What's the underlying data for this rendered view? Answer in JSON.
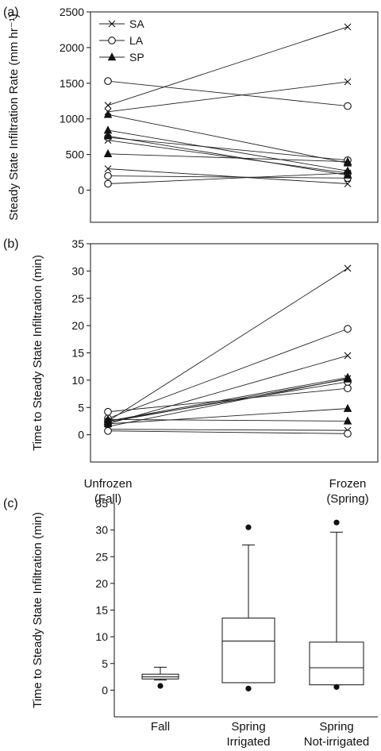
{
  "chart_data": [
    {
      "panel": "(a)",
      "type": "line",
      "xlabel": "",
      "ylabel": "Steady State Infiltration Rate (mm hr⁻¹)",
      "ylim": [
        -450,
        2500
      ],
      "yticks": [
        0,
        500,
        1000,
        1500,
        2000,
        2500
      ],
      "categories": [
        "Unfrozen (Fall)",
        "Frozen (Spring)"
      ],
      "legend": [
        {
          "name": "SA",
          "marker": "x"
        },
        {
          "name": "LA",
          "marker": "circle"
        },
        {
          "name": "SP",
          "marker": "triangle"
        }
      ],
      "legend_position": "top-left",
      "series": [
        {
          "name": "SA",
          "values": [
            1190,
            2290
          ]
        },
        {
          "name": "SA",
          "values": [
            1100,
            1520
          ]
        },
        {
          "name": "SA",
          "values": [
            700,
            240
          ]
        },
        {
          "name": "SA",
          "values": [
            300,
            90
          ]
        },
        {
          "name": "LA",
          "values": [
            1530,
            1180
          ]
        },
        {
          "name": "LA",
          "values": [
            740,
            420
          ]
        },
        {
          "name": "LA",
          "values": [
            200,
            170
          ]
        },
        {
          "name": "LA",
          "values": [
            90,
            240
          ]
        },
        {
          "name": "SP",
          "values": [
            1060,
            380
          ]
        },
        {
          "name": "SP",
          "values": [
            840,
            270
          ]
        },
        {
          "name": "SP",
          "values": [
            760,
            210
          ]
        },
        {
          "name": "SP",
          "values": [
            510,
            400
          ]
        }
      ]
    },
    {
      "panel": "(b)",
      "type": "line",
      "xlabel": "",
      "ylabel": "Time to Steady State Infiltration (min)",
      "ylim": [
        -5,
        35
      ],
      "yticks": [
        0,
        5,
        10,
        15,
        20,
        25,
        30,
        35
      ],
      "categories": [
        "Unfrozen (Fall)",
        "Frozen (Spring)"
      ],
      "category_labels": [
        [
          "Unfrozen",
          "(Fall)"
        ],
        [
          "Frozen",
          "(Spring)"
        ]
      ],
      "series": [
        {
          "name": "SA",
          "values": [
            2.5,
            30.5
          ]
        },
        {
          "name": "SA",
          "values": [
            2.0,
            14.5
          ]
        },
        {
          "name": "SA",
          "values": [
            1.5,
            10.3
          ]
        },
        {
          "name": "SA",
          "values": [
            1.0,
            0.8
          ]
        },
        {
          "name": "LA",
          "values": [
            3.0,
            19.4
          ]
        },
        {
          "name": "LA",
          "values": [
            4.2,
            8.5
          ]
        },
        {
          "name": "LA",
          "values": [
            2.5,
            9.7
          ]
        },
        {
          "name": "LA",
          "values": [
            0.7,
            0.2
          ]
        },
        {
          "name": "SP",
          "values": [
            2.3,
            10.2
          ]
        },
        {
          "name": "SP",
          "values": [
            2.0,
            4.8
          ]
        },
        {
          "name": "SP",
          "values": [
            2.8,
            2.5
          ]
        },
        {
          "name": "SP",
          "values": [
            2.5,
            10.5
          ]
        }
      ]
    },
    {
      "panel": "(c)",
      "type": "box",
      "xlabel": "",
      "ylabel": "Time to Steady State Infiltration (min)",
      "ylim": [
        -5,
        35
      ],
      "yticks": [
        0,
        5,
        10,
        15,
        20,
        25,
        30,
        35
      ],
      "categories": [
        "Fall",
        "Spring Irrigated",
        "Spring Not-irrigated"
      ],
      "category_labels": [
        [
          "Fall"
        ],
        [
          "Spring",
          "Irrigated"
        ],
        [
          "Spring",
          "Not-irrigated"
        ]
      ],
      "boxes": [
        {
          "category": "Fall",
          "whisker_low": 1.9,
          "q1": 2.1,
          "median": 2.5,
          "q3": 3.0,
          "whisker_high": 4.3,
          "outliers": [
            0.8
          ]
        },
        {
          "category": "Spring Irrigated",
          "whisker_low": 1.4,
          "q1": 1.4,
          "median": 9.2,
          "q3": 13.5,
          "whisker_high": 27.2,
          "outliers": [
            30.5,
            0.3
          ]
        },
        {
          "category": "Spring Not-irrigated",
          "whisker_low": 1.0,
          "q1": 1.0,
          "median": 4.2,
          "q3": 9.0,
          "whisker_high": 29.6,
          "outliers": [
            31.4,
            0.6
          ]
        }
      ]
    }
  ]
}
